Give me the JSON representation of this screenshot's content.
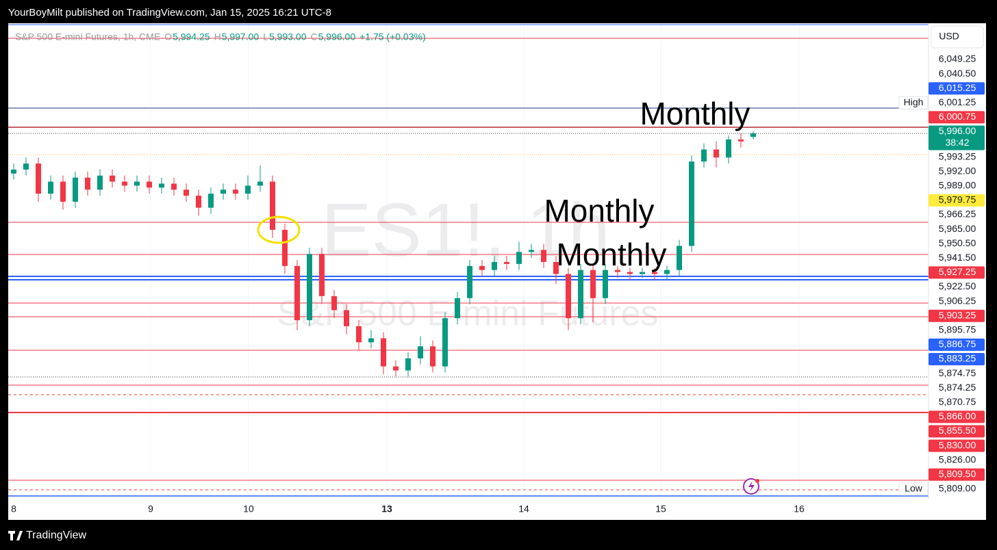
{
  "header": {
    "publisher": "YourBoyMilt published on TradingView.com, Jan 15, 2025 16:21 UTC-8"
  },
  "footer": {
    "brand": "TradingView"
  },
  "legend": {
    "symbol": "S&P 500 E-mini Futures, 1h, CME",
    "ohlc": [
      {
        "label": "O",
        "value": "5,994.25"
      },
      {
        "label": "H",
        "value": "5,997.00"
      },
      {
        "label": "L",
        "value": "5,993.00"
      },
      {
        "label": "C",
        "value": "5,996.00"
      }
    ],
    "change": "+1.75 (+0.03%)"
  },
  "watermark": {
    "ticker": "ES1!, 1h",
    "name": "S&P 500 E-mini Futures"
  },
  "currency": "USD",
  "annotations": [
    "Monthly",
    "Monthly",
    "Monthly"
  ],
  "xlabels": [
    "8",
    "9",
    "10",
    "13",
    "14",
    "15",
    "16"
  ],
  "price_labels": [
    {
      "text": "6,049.25"
    },
    {
      "text": "6,040.50"
    },
    {
      "text": "6,015.25",
      "bg": "#2962ff"
    },
    {
      "text": "6,001.25",
      "tag": "High"
    },
    {
      "text": "6,000.75",
      "bg": "#f23645"
    },
    {
      "text": "5,996.00",
      "bg": "#089981",
      "tag2": "38:42"
    },
    {
      "text": "5,993.25"
    },
    {
      "text": "5,992.00"
    },
    {
      "text": "5,989.00"
    },
    {
      "text": "5,979.75",
      "bg": "#ffeb3b"
    },
    {
      "text": "5,966.25"
    },
    {
      "text": "5,965.00"
    },
    {
      "text": "5,950.50"
    },
    {
      "text": "5,941.50"
    },
    {
      "text": "5,927.25",
      "bg": "#f23645"
    },
    {
      "text": "5,922.50"
    },
    {
      "text": "5,906.25"
    },
    {
      "text": "5,903.25",
      "bg": "#f23645"
    },
    {
      "text": "5,895.75"
    },
    {
      "text": "5,886.75",
      "bg": "#2962ff"
    },
    {
      "text": "5,883.25",
      "bg": "#2962ff"
    },
    {
      "text": "5,874.75"
    },
    {
      "text": "5,874.25"
    },
    {
      "text": "5,870.75"
    },
    {
      "text": "5,866.00",
      "bg": "#f23645"
    },
    {
      "text": "5,855.50",
      "bg": "#f23645"
    },
    {
      "text": "5,830.00",
      "bg": "#f23645"
    },
    {
      "text": "5,826.00"
    },
    {
      "text": "5,809.50",
      "bg": "#f23645"
    },
    {
      "text": "5,809.00",
      "tag": "Low"
    }
  ],
  "chart_data": {
    "type": "candlestick",
    "ylim": [
      5815.5,
      6050.5
    ],
    "up_color": "#089981",
    "down_color": "#f23645",
    "open": [
      5976,
      5978,
      5981,
      5966,
      5972,
      5962,
      5974,
      5968,
      5975,
      5972,
      5970,
      5972,
      5969,
      5971,
      5968,
      5965,
      5959,
      5966,
      5968,
      5966,
      5970,
      5972,
      5948,
      5930,
      5903,
      5936,
      5915,
      5908,
      5900,
      5892,
      5894,
      5880,
      5878,
      5884,
      5890,
      5880,
      5904,
      5914,
      5930,
      5928,
      5932,
      5931,
      5937,
      5938,
      5932,
      5926,
      5904,
      5928,
      5914,
      5928,
      5927,
      5926,
      5927,
      5926,
      5928,
      5940,
      5982,
      5988,
      5984,
      5993,
      5994.25
    ],
    "high": [
      5981,
      5984,
      5984,
      5975,
      5975,
      5977,
      5977,
      5978,
      5978,
      5975,
      5975,
      5975,
      5974,
      5974,
      5971,
      5968,
      5969,
      5971,
      5971,
      5975,
      5980,
      5975,
      5951,
      5933,
      5939,
      5939,
      5918,
      5911,
      5903,
      5898,
      5897,
      5883,
      5887,
      5895,
      5893,
      5907,
      5917,
      5933,
      5933,
      5935,
      5935,
      5942,
      5941,
      5941,
      5935,
      5929,
      5931,
      5931,
      5931,
      5930,
      5929,
      5929,
      5929,
      5930,
      5943,
      5985,
      5991,
      5992,
      5995,
      5996,
      5997
    ],
    "low": [
      5973,
      5975,
      5962,
      5963,
      5958,
      5959,
      5965,
      5965,
      5969,
      5967,
      5967,
      5966,
      5966,
      5965,
      5962,
      5955,
      5956,
      5963,
      5963,
      5963,
      5967,
      5944,
      5926,
      5898,
      5900,
      5911,
      5904,
      5896,
      5888,
      5889,
      5876,
      5875,
      5875,
      5881,
      5877,
      5877,
      5901,
      5911,
      5925,
      5925,
      5928,
      5928,
      5934,
      5929,
      5921,
      5898,
      5901,
      5902,
      5911,
      5924,
      5923,
      5924,
      5923,
      5923,
      5925,
      5937,
      5979,
      5979,
      5981,
      5989,
      5993
    ],
    "close": [
      5978,
      5981,
      5966,
      5972,
      5962,
      5974,
      5968,
      5975,
      5972,
      5970,
      5972,
      5969,
      5971,
      5968,
      5965,
      5959,
      5966,
      5968,
      5966,
      5970,
      5972,
      5948,
      5930,
      5903,
      5936,
      5915,
      5908,
      5900,
      5892,
      5894,
      5880,
      5878,
      5884,
      5890,
      5880,
      5904,
      5914,
      5930,
      5928,
      5932,
      5931,
      5937,
      5938,
      5932,
      5926,
      5904,
      5928,
      5914,
      5928,
      5927,
      5926,
      5927,
      5926,
      5928,
      5940,
      5982,
      5988,
      5984,
      5993,
      5992,
      5996
    ]
  }
}
